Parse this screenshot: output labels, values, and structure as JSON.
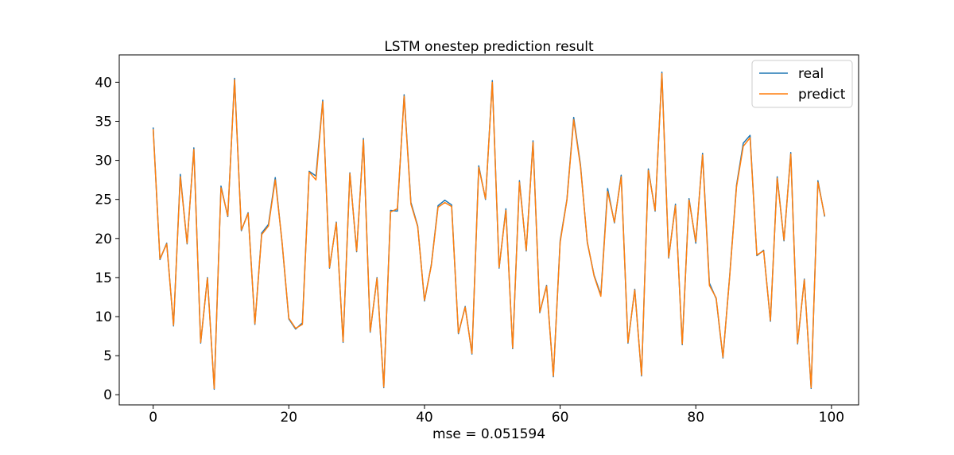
{
  "chart_data": {
    "type": "line",
    "title": "LSTM onestep prediction result",
    "xlabel": "mse = 0.051594",
    "ylabel": "",
    "xlim": [
      -5,
      104
    ],
    "ylim": [
      -1.3,
      43.5
    ],
    "xticks": [
      0,
      20,
      40,
      60,
      80,
      100
    ],
    "yticks": [
      0,
      5,
      10,
      15,
      20,
      25,
      30,
      35,
      40
    ],
    "legend_position": "top-right",
    "colors": {
      "real": "#1f77b4",
      "predict": "#ff7f0e"
    },
    "series": [
      {
        "name": "real",
        "values": [
          34.2,
          17.3,
          19.4,
          8.8,
          28.2,
          19.3,
          31.6,
          6.6,
          15.0,
          0.7,
          26.7,
          22.8,
          40.5,
          21.0,
          23.3,
          9.0,
          20.7,
          21.8,
          27.8,
          19.5,
          9.7,
          8.4,
          9.2,
          28.6,
          28.0,
          37.7,
          16.2,
          22.1,
          6.7,
          28.4,
          18.3,
          32.8,
          8.0,
          15.0,
          0.9,
          23.6,
          23.5,
          38.4,
          24.6,
          21.6,
          12.0,
          16.6,
          24.2,
          24.9,
          24.3,
          7.8,
          11.3,
          5.2,
          29.3,
          25.0,
          40.2,
          16.2,
          23.8,
          5.9,
          27.4,
          18.4,
          32.5,
          10.5,
          14.0,
          2.3,
          19.7,
          25.0,
          35.5,
          29.4,
          19.5,
          15.3,
          12.8,
          26.4,
          22.0,
          28.1,
          6.6,
          13.5,
          2.4,
          28.9,
          23.5,
          41.3,
          17.5,
          24.4,
          6.4,
          25.1,
          19.4,
          30.9,
          14.3,
          12.3,
          4.7,
          15.3,
          26.8,
          32.2,
          33.2,
          17.8,
          18.5,
          9.4,
          27.9,
          19.7,
          31.0,
          6.5,
          14.8,
          0.8,
          27.4,
          22.8
        ]
      },
      {
        "name": "predict",
        "values": [
          34.0,
          17.4,
          19.3,
          8.9,
          27.9,
          19.4,
          31.4,
          6.7,
          14.9,
          0.8,
          26.5,
          22.9,
          40.3,
          21.1,
          23.2,
          9.1,
          20.5,
          21.6,
          27.5,
          19.6,
          9.8,
          8.5,
          9.0,
          28.5,
          27.5,
          37.5,
          16.3,
          22.0,
          6.8,
          28.3,
          18.4,
          32.6,
          8.1,
          14.9,
          1.0,
          23.4,
          23.8,
          38.2,
          24.4,
          21.5,
          12.1,
          16.5,
          24.0,
          24.6,
          24.1,
          7.9,
          11.2,
          5.3,
          29.1,
          25.1,
          40.0,
          16.3,
          23.6,
          6.0,
          27.2,
          18.5,
          32.3,
          10.6,
          13.9,
          2.4,
          19.5,
          24.9,
          35.2,
          29.2,
          19.6,
          15.2,
          12.6,
          26.0,
          22.1,
          27.9,
          6.7,
          13.4,
          2.5,
          28.7,
          23.6,
          41.1,
          17.6,
          24.2,
          6.5,
          24.9,
          19.6,
          30.7,
          14.0,
          12.4,
          4.8,
          15.2,
          26.6,
          31.8,
          32.9,
          17.9,
          18.4,
          9.5,
          27.7,
          19.8,
          30.8,
          6.6,
          14.7,
          0.9,
          27.2,
          22.9
        ]
      }
    ]
  }
}
